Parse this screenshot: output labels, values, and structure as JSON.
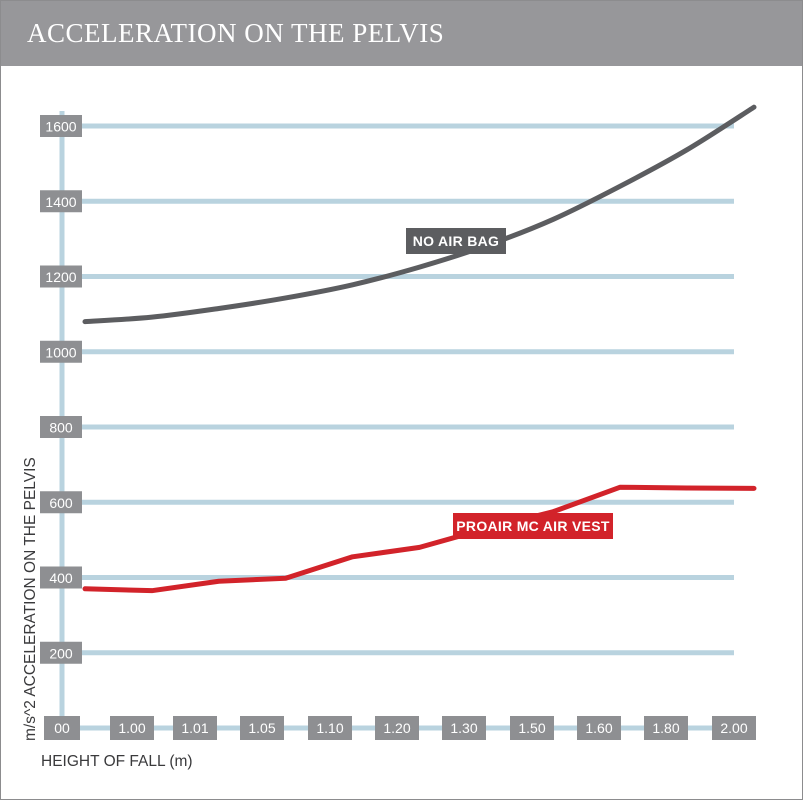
{
  "chart_data": {
    "type": "line",
    "title": "ACCELERATION ON THE PELVIS",
    "xlabel": "HEIGHT OF FALL (m)",
    "ylabel": "m/s^2 ACCELERATION ON THE PELVIS",
    "categories": [
      "00",
      "1.00",
      "1.01",
      "1.05",
      "1.10",
      "1.20",
      "1.30",
      "1.50",
      "1.60",
      "1.80",
      "2.00"
    ],
    "yticks": [
      200,
      400,
      600,
      800,
      1000,
      1200,
      1400,
      1600
    ],
    "ylim": [
      0,
      1700
    ],
    "grid": true,
    "series": [
      {
        "name": "NO AIR BAG",
        "color": "#5c5d60",
        "values": [
          1080,
          1092,
          1115,
          1143,
          1178,
          1225,
          1282,
          1352,
          1440,
          1537,
          1650
        ]
      },
      {
        "name": "PROAIR MC AIR VEST",
        "color": "#d2232a",
        "values": [
          370,
          365,
          390,
          398,
          455,
          480,
          530,
          575,
          640,
          638,
          637
        ]
      }
    ]
  },
  "colors": {
    "header": "#97979a",
    "grid": "#b9d3df",
    "tick_label_bg": "#8e8f92",
    "no_air_bag": "#5c5d60",
    "air_vest": "#d2232a"
  }
}
